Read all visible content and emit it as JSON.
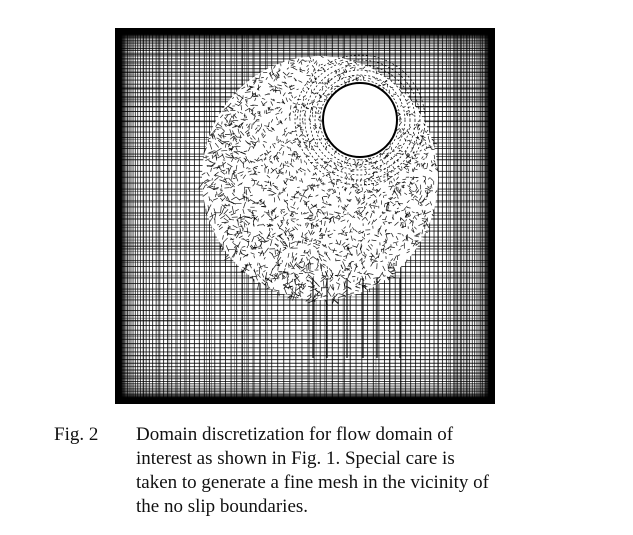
{
  "figure": {
    "mesh_icon": "mesh-grid-icon",
    "hole_icon": "circular-hole-icon",
    "colors": {
      "mesh": "#000000",
      "background": "#ffffff"
    }
  },
  "caption": {
    "label": "Fig. 2",
    "lines": [
      "Domain discretization for flow domain of",
      "interest as shown in Fig. 1. Special care is",
      "taken to generate a fine mesh in the vicinity of",
      "the no slip boundaries."
    ]
  }
}
